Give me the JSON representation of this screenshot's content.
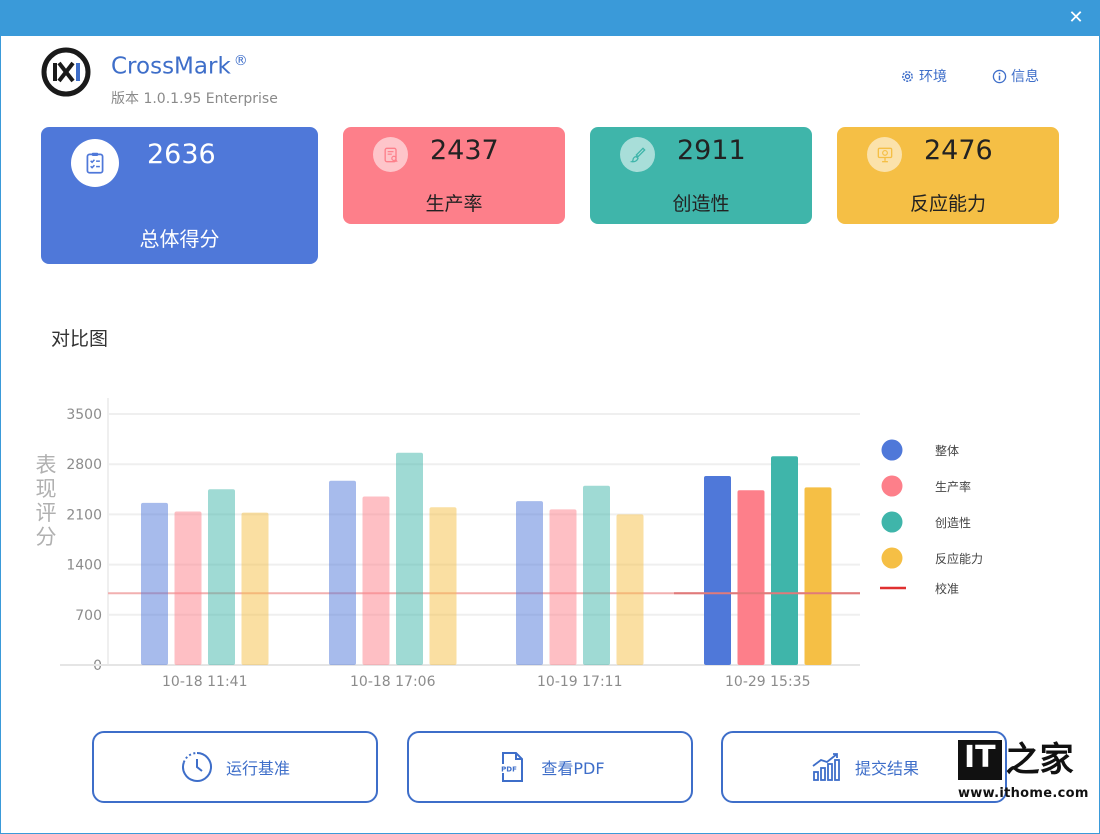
{
  "window": {
    "close_label": "✕"
  },
  "app": {
    "name": "CrossMark",
    "registered": "®",
    "version": "版本 1.0.1.95 Enterprise"
  },
  "top_links": {
    "environment": "环境",
    "info": "信息"
  },
  "scores": {
    "total": {
      "value": "2636",
      "label": "总体得分",
      "icon": "clipboard-check-icon"
    },
    "productivity": {
      "value": "2437",
      "label": "生产率",
      "icon": "document-search-icon",
      "color": "#fd7f8a"
    },
    "creativity": {
      "value": "2911",
      "label": "创造性",
      "icon": "brush-icon",
      "color": "#3fb5aa"
    },
    "responsiveness": {
      "value": "2476",
      "label": "反应能力",
      "icon": "presentation-icon",
      "color": "#f5bf45"
    }
  },
  "comparison": {
    "title": "对比图"
  },
  "chart_data": {
    "type": "bar",
    "ylabel": "表现评分",
    "ylim": [
      0,
      3500
    ],
    "yticks": [
      0,
      700,
      1400,
      2100,
      2800,
      3500
    ],
    "grid": true,
    "categories": [
      "10-18 11:41",
      "10-18 17:06",
      "10-19 17:11",
      "10-29 15:35"
    ],
    "series": [
      {
        "name": "整体",
        "color": "#4f78d9",
        "values": [
          2260,
          2570,
          2285,
          2636
        ]
      },
      {
        "name": "生产率",
        "color": "#fd7f8a",
        "values": [
          2140,
          2350,
          2170,
          2437
        ]
      },
      {
        "name": "创造性",
        "color": "#3fb5aa",
        "values": [
          2450,
          2960,
          2500,
          2911
        ]
      },
      {
        "name": "反应能力",
        "color": "#f5bf45",
        "values": [
          2125,
          2200,
          2100,
          2476
        ]
      }
    ],
    "highlight_category": "10-29 15:35",
    "reference_line": {
      "name": "校准",
      "value": 1000,
      "color": "#e03030"
    },
    "legend_position": "right"
  },
  "buttons": {
    "run": "运行基准",
    "pdf": "查看PDF",
    "submit": "提交结果"
  },
  "watermark": {
    "it": "IT",
    "home": "之家",
    "url": "www.ithome.com"
  }
}
